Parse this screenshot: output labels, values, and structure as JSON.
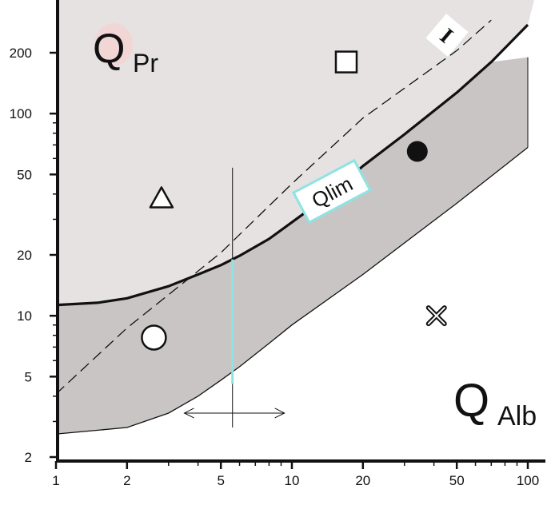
{
  "chart_data": {
    "type": "line",
    "x_scale": "log",
    "y_scale": "log",
    "xlim": [
      1,
      110
    ],
    "ylim": [
      2,
      290
    ],
    "x_ticks": [
      1,
      2,
      5,
      10,
      20,
      50,
      100
    ],
    "x_tick_labels": [
      "1",
      "2",
      "5",
      "10",
      "20",
      "50",
      "100"
    ],
    "y_ticks": [
      2,
      5,
      10,
      20,
      50,
      100,
      200
    ],
    "y_tick_labels": [
      "2",
      "5",
      "10",
      "20",
      "50",
      "100",
      "200"
    ],
    "grid": false,
    "colors": {
      "upper_region": "#e6e2e2",
      "band": "#c9c5c5",
      "accent_line": "#8fe3e3",
      "q_highlight": "#f2d6d6",
      "stroke": "#111111"
    },
    "region_labels": {
      "upper": {
        "letter": "Q",
        "sub": "Pr"
      },
      "lower": {
        "letter": "Q",
        "sub": "Alb"
      }
    },
    "qlim_label": "Qlim",
    "roman_label": "I",
    "series": [
      {
        "style": "thick-solid",
        "label": "Qlim",
        "points": [
          [
            1,
            11.3
          ],
          [
            1.5,
            11.6
          ],
          [
            2,
            12.2
          ],
          [
            3,
            14.0
          ],
          [
            4,
            16.0
          ],
          [
            5,
            17.8
          ],
          [
            6,
            19.8
          ],
          [
            8,
            24
          ],
          [
            10,
            29
          ],
          [
            15,
            41
          ],
          [
            20,
            55
          ],
          [
            30,
            79
          ],
          [
            50,
            127
          ],
          [
            70,
            180
          ],
          [
            100,
            275
          ]
        ]
      },
      {
        "style": "dashed",
        "label": "I",
        "points": [
          [
            1,
            4.1
          ],
          [
            2,
            8.7
          ],
          [
            5,
            20.5
          ],
          [
            10,
            45
          ],
          [
            20,
            95
          ],
          [
            50,
            205
          ],
          [
            70,
            290
          ]
        ]
      },
      {
        "style": "band-lower",
        "points": [
          [
            1,
            2.6
          ],
          [
            2,
            2.8
          ],
          [
            3,
            3.3
          ],
          [
            4,
            4.0
          ],
          [
            5,
            4.8
          ],
          [
            6,
            5.6
          ],
          [
            8,
            7.3
          ],
          [
            10,
            9.0
          ],
          [
            20,
            16
          ],
          [
            50,
            36
          ],
          [
            100,
            68
          ]
        ]
      }
    ],
    "band_top": [
      [
        1,
        11.3
      ],
      [
        1.5,
        11.6
      ],
      [
        2,
        12.2
      ],
      [
        3,
        14.0
      ],
      [
        4,
        16.0
      ],
      [
        5,
        17.8
      ],
      [
        6,
        19.8
      ],
      [
        8,
        24
      ],
      [
        10,
        29
      ],
      [
        15,
        41
      ],
      [
        20,
        55
      ],
      [
        30,
        79
      ],
      [
        50,
        127
      ],
      [
        70,
        180
      ],
      [
        100,
        190
      ]
    ],
    "vertical_markers": [
      {
        "x": 5.6,
        "y_from": 2.8,
        "y_to": 54,
        "style": "thin-black"
      },
      {
        "x": 5.6,
        "y_from": 4.6,
        "y_to": 19.0,
        "style": "cyan"
      }
    ],
    "double_arrow": {
      "x_from": 3.5,
      "x_to": 9.3,
      "y": 3.3
    },
    "markers": [
      {
        "shape": "square-open",
        "x": 17,
        "y": 180
      },
      {
        "shape": "triangle-open",
        "x": 2.8,
        "y": 38
      },
      {
        "shape": "circle-filled",
        "x": 34,
        "y": 65
      },
      {
        "shape": "circle-open",
        "x": 2.6,
        "y": 7.8
      },
      {
        "shape": "x-mark",
        "x": 41,
        "y": 10
      }
    ]
  }
}
